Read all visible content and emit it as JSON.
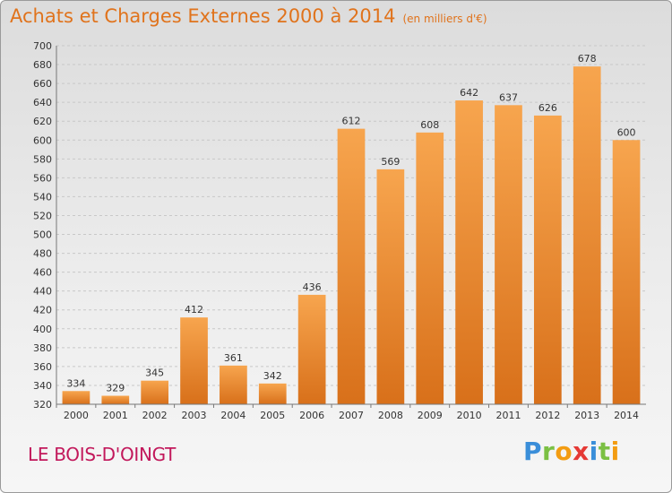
{
  "header": {
    "title": "Achats et Charges Externes 2000 à 2014",
    "unit": "(en milliers d'€)"
  },
  "footer": {
    "place": "LE BOIS-D'OINGT",
    "logo": "Proxiti"
  },
  "colors": {
    "bar_light": "#f7a54e",
    "bar_dark": "#d8701a",
    "title": "#e0731c",
    "place": "#c2185b"
  },
  "chart_data": {
    "type": "bar",
    "title": "Achats et Charges Externes 2000 à 2014",
    "subtitle": "(en milliers d'€)",
    "categories": [
      "2000",
      "2001",
      "2002",
      "2003",
      "2004",
      "2005",
      "2006",
      "2007",
      "2008",
      "2009",
      "2010",
      "2011",
      "2012",
      "2013",
      "2014"
    ],
    "values": [
      334,
      329,
      345,
      412,
      361,
      342,
      436,
      612,
      569,
      608,
      642,
      637,
      626,
      678,
      600
    ],
    "ylim": [
      320,
      700
    ],
    "yticks": [
      320,
      340,
      360,
      380,
      400,
      420,
      440,
      460,
      480,
      500,
      520,
      540,
      560,
      580,
      600,
      620,
      640,
      660,
      680,
      700
    ],
    "grid": true,
    "data_labels": true
  }
}
